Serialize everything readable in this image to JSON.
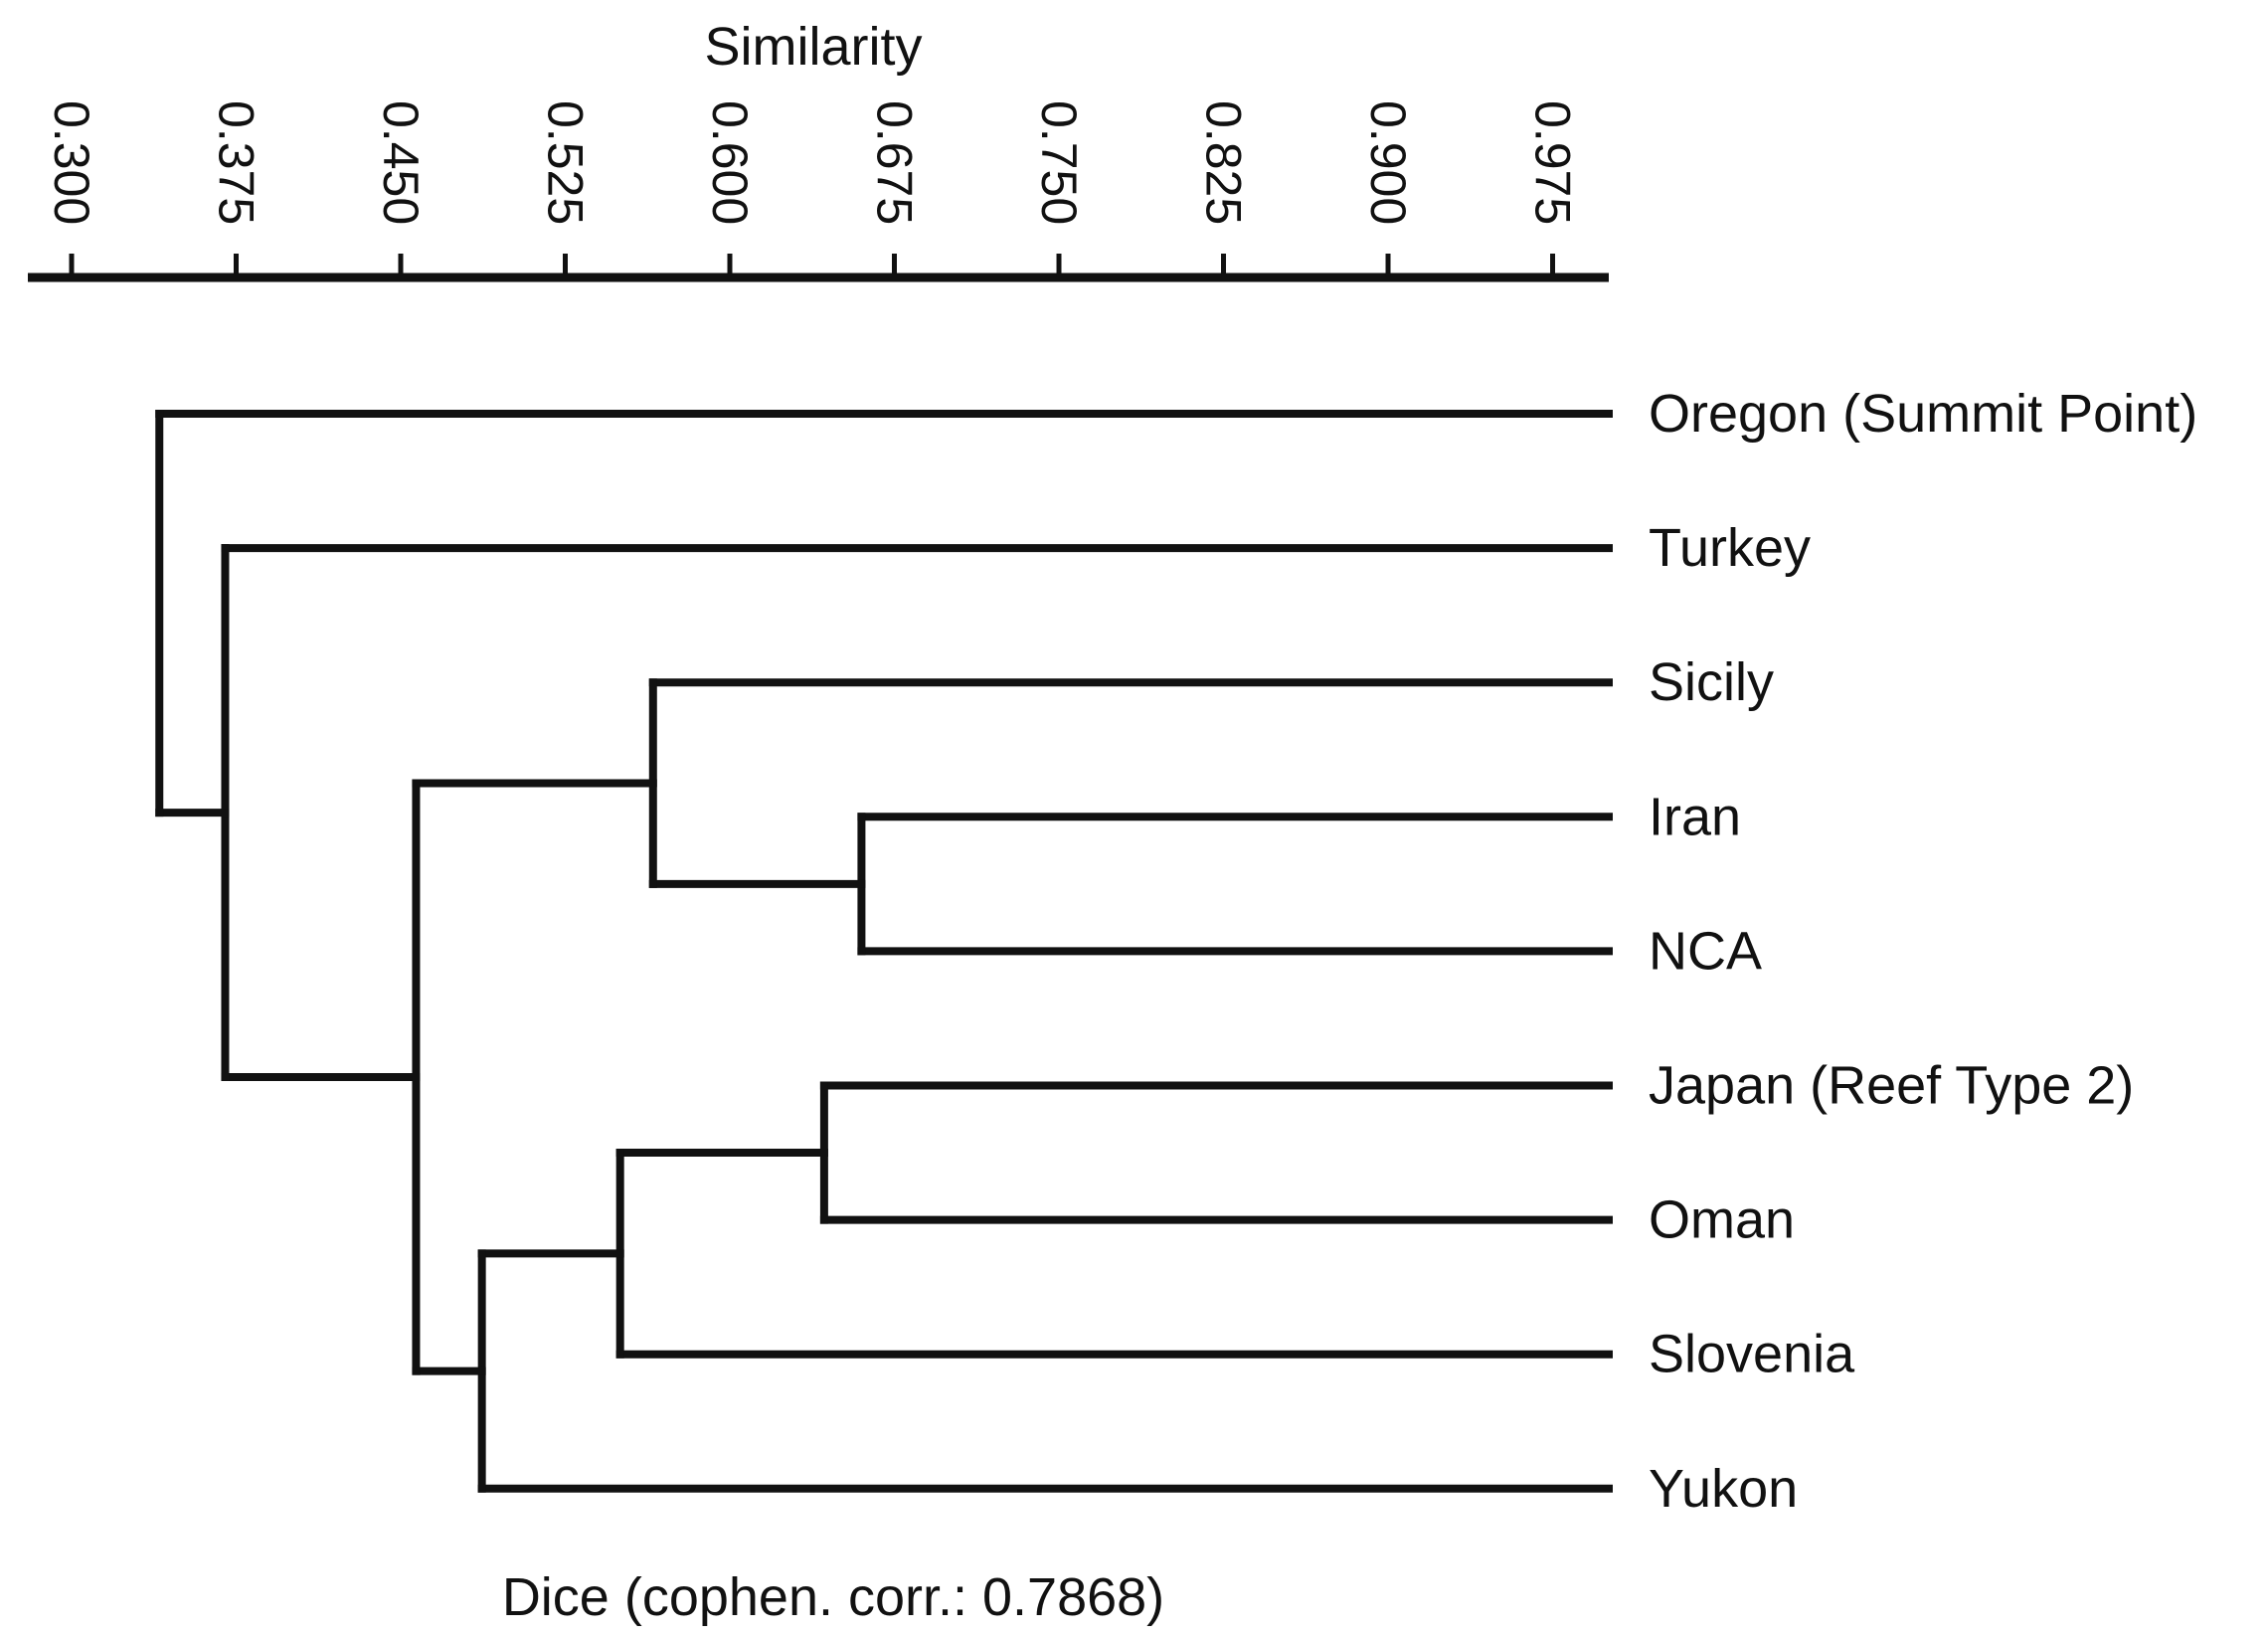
{
  "chart_data": {
    "type": "dendrogram",
    "axis_title": "Similarity",
    "axis_position": "top",
    "xlim": [
      0.3,
      0.975
    ],
    "ticks": [
      {
        "value": 0.3,
        "label": "0.300"
      },
      {
        "value": 0.375,
        "label": "0.375"
      },
      {
        "value": 0.45,
        "label": "0.450"
      },
      {
        "value": 0.525,
        "label": "0.525"
      },
      {
        "value": 0.6,
        "label": "0.600"
      },
      {
        "value": 0.675,
        "label": "0.675"
      },
      {
        "value": 0.75,
        "label": "0.750"
      },
      {
        "value": 0.825,
        "label": "0.825"
      },
      {
        "value": 0.9,
        "label": "0.900"
      },
      {
        "value": 0.975,
        "label": "0.975"
      }
    ],
    "leaves": [
      "Oregon (Summit Point)",
      "Turkey",
      "Sicily",
      "Iran",
      "NCA",
      "Japan (Reef Type 2)",
      "Oman",
      "Slovenia",
      "Yukon"
    ],
    "merges": [
      {
        "id": "m_iran_nca",
        "similarity": 0.66,
        "children": [
          "Iran",
          "NCA"
        ]
      },
      {
        "id": "m_japan_oman",
        "similarity": 0.643,
        "children": [
          "Japan (Reef Type 2)",
          "Oman"
        ]
      },
      {
        "id": "m_sicily",
        "similarity": 0.565,
        "children": [
          "Sicily",
          "m_iran_nca"
        ]
      },
      {
        "id": "m_slovenia",
        "similarity": 0.55,
        "children": [
          "m_japan_oman",
          "Slovenia"
        ]
      },
      {
        "id": "m_yukon",
        "similarity": 0.487,
        "children": [
          "m_slovenia",
          "Yukon"
        ]
      },
      {
        "id": "m_big",
        "similarity": 0.457,
        "children": [
          "m_sicily",
          "m_yukon"
        ]
      },
      {
        "id": "m_turkey",
        "similarity": 0.37,
        "children": [
          "Turkey",
          "m_big"
        ]
      },
      {
        "id": "m_root",
        "similarity": 0.34,
        "children": [
          "Oregon (Summit Point)",
          "m_turkey"
        ]
      }
    ],
    "footer": "Dice (cophen. corr.: 0.7868)"
  }
}
